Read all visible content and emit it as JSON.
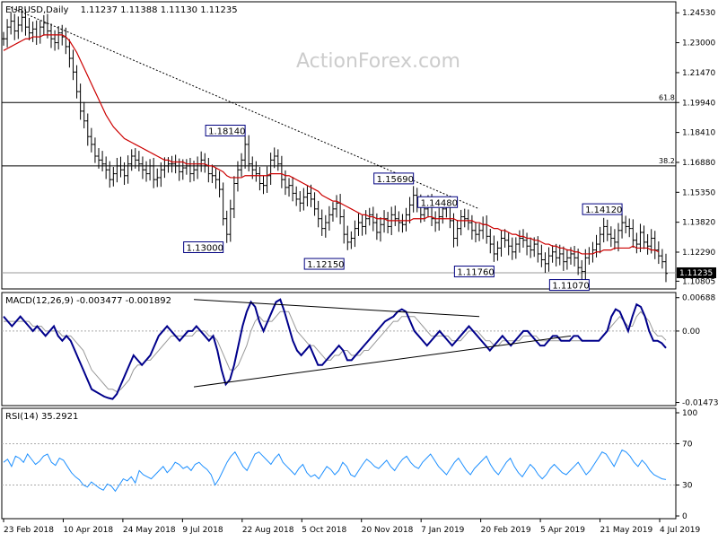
{
  "header": {
    "symbol": "EURUSD,Daily",
    "ohlc": "1.11237 1.11388 1.11130 1.11235",
    "watermark": "ActionForex.com"
  },
  "colors": {
    "background": "#ffffff",
    "price_bars": "#000000",
    "moving_average": "#cc0000",
    "macd_line": "#00008b",
    "signal_line": "#999999",
    "rsi_line": "#1e90ff",
    "grid_dotted": "#aaaaaa",
    "label_border": "#000080",
    "watermark": "#cccccc"
  },
  "chart_data": [
    {
      "type": "line",
      "title": "EURUSD,Daily",
      "ohlc_readout": "1.11237 1.11388 1.11130 1.11235",
      "y_ticks": [
        "1.24530",
        "1.23000",
        "1.21470",
        "1.19940",
        "1.18410",
        "1.16880",
        "1.15350",
        "1.13820",
        "1.12290",
        "1.10805"
      ],
      "last_price_label": "1.11235",
      "ylim": [
        1.105,
        1.25
      ],
      "fib_levels": [
        {
          "label": "61.8",
          "value": 1.1994
        },
        {
          "label": "38.2",
          "value": 1.167
        }
      ],
      "annotations": [
        {
          "text": "1.18140",
          "x_index": 66,
          "value": 1.1814
        },
        {
          "text": "1.13000",
          "x_index": 60,
          "value": 1.13
        },
        {
          "text": "1.12150",
          "x_index": 93,
          "value": 1.1215
        },
        {
          "text": "1.15690",
          "x_index": 112,
          "value": 1.1569
        },
        {
          "text": "1.14480",
          "x_index": 124,
          "value": 1.1448
        },
        {
          "text": "1.11760",
          "x_index": 134,
          "value": 1.1176
        },
        {
          "text": "1.14120",
          "x_index": 169,
          "value": 1.1412
        },
        {
          "text": "1.11070",
          "x_index": 160,
          "value": 1.1107
        }
      ],
      "trendline": {
        "from": {
          "x_index": 2,
          "value": 1.248
        },
        "to": {
          "x_index": 130,
          "value": 1.145
        }
      },
      "series": [
        {
          "values": [
            1.232,
            1.238,
            1.241,
            1.236,
            1.239,
            1.243,
            1.238,
            1.235,
            1.237,
            1.233,
            1.238,
            1.24,
            1.236,
            1.232,
            1.23,
            1.235,
            1.233,
            1.228,
            1.222,
            1.215,
            1.205,
            1.195,
            1.19,
            1.182,
            1.178,
            1.172,
            1.17,
            1.168,
            1.165,
            1.16,
            1.163,
            1.167,
            1.165,
            1.162,
            1.168,
            1.172,
            1.17,
            1.168,
            1.165,
            1.163,
            1.167,
            1.16,
            1.161,
            1.165,
            1.167,
            1.168,
            1.168,
            1.167,
            1.164,
            1.166,
            1.167,
            1.163,
            1.165,
            1.168,
            1.17,
            1.167,
            1.163,
            1.162,
            1.16,
            1.155,
            1.14,
            1.132,
            1.145,
            1.158,
            1.165,
            1.17,
            1.178,
            1.168,
            1.165,
            1.163,
            1.158,
            1.157,
            1.162,
            1.17,
            1.172,
            1.168,
            1.16,
            1.156,
            1.157,
            1.153,
            1.15,
            1.148,
            1.151,
            1.153,
            1.15,
            1.145,
            1.14,
            1.135,
            1.138,
            1.142,
            1.145,
            1.148,
            1.141,
            1.132,
            1.128,
            1.13,
            1.135,
            1.138,
            1.136,
            1.14,
            1.142,
            1.138,
            1.133,
            1.137,
            1.14,
            1.136,
            1.142,
            1.14,
            1.138,
            1.137,
            1.142,
            1.147,
            1.152,
            1.148,
            1.142,
            1.145,
            1.148,
            1.14,
            1.138,
            1.141,
            1.145,
            1.147,
            1.139,
            1.13,
            1.135,
            1.141,
            1.14,
            1.138,
            1.134,
            1.132,
            1.134,
            1.137,
            1.131,
            1.127,
            1.122,
            1.125,
            1.13,
            1.129,
            1.126,
            1.123,
            1.127,
            1.13,
            1.129,
            1.126,
            1.124,
            1.127,
            1.122,
            1.119,
            1.117,
            1.121,
            1.123,
            1.12,
            1.122,
            1.118,
            1.12,
            1.122,
            1.12,
            1.115,
            1.113,
            1.12,
            1.122,
            1.124,
            1.127,
            1.132,
            1.136,
            1.132,
            1.13,
            1.128,
            1.134,
            1.138,
            1.136,
            1.135,
            1.129,
            1.127,
            1.133,
            1.128,
            1.126,
            1.13,
            1.124,
            1.121,
            1.118,
            1.112
          ]
        },
        {
          "name": "MA",
          "values": [
            1.226,
            1.227,
            1.228,
            1.229,
            1.23,
            1.231,
            1.232,
            1.232,
            1.233,
            1.233,
            1.233,
            1.234,
            1.234,
            1.234,
            1.234,
            1.234,
            1.234,
            1.233,
            1.231,
            1.228,
            1.225,
            1.221,
            1.217,
            1.213,
            1.209,
            1.205,
            1.201,
            1.197,
            1.193,
            1.19,
            1.187,
            1.185,
            1.183,
            1.181,
            1.18,
            1.179,
            1.178,
            1.177,
            1.176,
            1.175,
            1.174,
            1.173,
            1.172,
            1.171,
            1.17,
            1.17,
            1.169,
            1.169,
            1.169,
            1.169,
            1.168,
            1.168,
            1.168,
            1.168,
            1.168,
            1.168,
            1.167,
            1.167,
            1.166,
            1.165,
            1.164,
            1.162,
            1.161,
            1.161,
            1.161,
            1.161,
            1.162,
            1.162,
            1.162,
            1.162,
            1.162,
            1.162,
            1.162,
            1.163,
            1.163,
            1.163,
            1.163,
            1.162,
            1.162,
            1.161,
            1.16,
            1.159,
            1.158,
            1.157,
            1.156,
            1.155,
            1.154,
            1.152,
            1.151,
            1.15,
            1.149,
            1.149,
            1.148,
            1.147,
            1.146,
            1.145,
            1.144,
            1.143,
            1.142,
            1.142,
            1.141,
            1.141,
            1.14,
            1.14,
            1.14,
            1.139,
            1.139,
            1.139,
            1.139,
            1.139,
            1.139,
            1.139,
            1.14,
            1.14,
            1.14,
            1.14,
            1.141,
            1.141,
            1.14,
            1.14,
            1.14,
            1.14,
            1.14,
            1.14,
            1.139,
            1.139,
            1.139,
            1.139,
            1.139,
            1.138,
            1.138,
            1.137,
            1.137,
            1.136,
            1.135,
            1.135,
            1.134,
            1.134,
            1.133,
            1.132,
            1.132,
            1.131,
            1.131,
            1.13,
            1.13,
            1.129,
            1.129,
            1.128,
            1.127,
            1.127,
            1.126,
            1.126,
            1.125,
            1.125,
            1.124,
            1.124,
            1.123,
            1.123,
            1.122,
            1.122,
            1.122,
            1.122,
            1.123,
            1.123,
            1.124,
            1.124,
            1.124,
            1.125,
            1.125,
            1.125,
            1.125,
            1.125,
            1.126,
            1.125,
            1.125,
            1.125,
            1.125,
            1.124,
            1.124,
            1.123
          ]
        }
      ]
    },
    {
      "type": "line",
      "title": "MACD(12,26,9) -0.003477 -0.001892",
      "y_ticks": [
        "0.00688",
        "0.00",
        "-0.014731"
      ],
      "ylim": [
        -0.015,
        0.0072
      ],
      "trendlines": [
        {
          "from": {
            "x_index": 52,
            "value": 0.0065
          },
          "to": {
            "x_index": 130,
            "value": 0.003
          }
        },
        {
          "from": {
            "x_index": 52,
            "value": -0.0115
          },
          "to": {
            "x_index": 155,
            "value": -0.001
          }
        }
      ],
      "series": [
        {
          "name": "MACD",
          "values": [
            0.003,
            0.002,
            0.001,
            0.002,
            0.003,
            0.002,
            0.001,
            0.0,
            0.001,
            0.0,
            -0.001,
            0.0,
            0.001,
            -0.001,
            -0.002,
            -0.001,
            -0.002,
            -0.004,
            -0.006,
            -0.008,
            -0.01,
            -0.012,
            -0.0125,
            -0.013,
            -0.0135,
            -0.0138,
            -0.014,
            -0.013,
            -0.011,
            -0.009,
            -0.007,
            -0.005,
            -0.006,
            -0.007,
            -0.006,
            -0.005,
            -0.003,
            -0.001,
            0.0,
            0.001,
            0.0,
            -0.001,
            -0.002,
            -0.001,
            0.0,
            0.0,
            0.001,
            0.0,
            -0.001,
            -0.002,
            -0.001,
            -0.004,
            -0.008,
            -0.011,
            -0.01,
            -0.007,
            -0.003,
            0.001,
            0.004,
            0.006,
            0.005,
            0.002,
            0.0,
            0.002,
            0.004,
            0.006,
            0.0065,
            0.004,
            0.001,
            -0.002,
            -0.004,
            -0.005,
            -0.004,
            -0.003,
            -0.005,
            -0.007,
            -0.007,
            -0.006,
            -0.005,
            -0.004,
            -0.003,
            -0.004,
            -0.006,
            -0.006,
            -0.005,
            -0.004,
            -0.003,
            -0.002,
            -0.001,
            0.0,
            0.001,
            0.002,
            0.0025,
            0.003,
            0.004,
            0.0045,
            0.004,
            0.002,
            0.0,
            -0.001,
            -0.002,
            -0.003,
            -0.002,
            -0.001,
            0.0,
            -0.001,
            -0.002,
            -0.003,
            -0.002,
            -0.001,
            0.0,
            0.001,
            0.0,
            -0.001,
            -0.002,
            -0.003,
            -0.004,
            -0.003,
            -0.002,
            -0.001,
            -0.002,
            -0.003,
            -0.002,
            -0.001,
            0.0,
            0.0,
            -0.001,
            -0.002,
            -0.003,
            -0.003,
            -0.002,
            -0.001,
            -0.001,
            -0.002,
            -0.002,
            -0.002,
            -0.001,
            -0.001,
            -0.002,
            -0.002,
            -0.002,
            -0.002,
            -0.002,
            -0.001,
            0.0,
            0.003,
            0.0045,
            0.004,
            0.002,
            0.0,
            0.003,
            0.0055,
            0.005,
            0.003,
            0.0,
            -0.002,
            -0.002,
            -0.0025,
            -0.0035
          ]
        },
        {
          "name": "Signal",
          "values": [
            0.002,
            0.002,
            0.002,
            0.002,
            0.002,
            0.002,
            0.002,
            0.001,
            0.001,
            0.001,
            0.0,
            0.0,
            0.0,
            0.0,
            -0.001,
            -0.001,
            -0.001,
            -0.002,
            -0.003,
            -0.004,
            -0.006,
            -0.008,
            -0.009,
            -0.01,
            -0.011,
            -0.012,
            -0.012,
            -0.0125,
            -0.012,
            -0.011,
            -0.01,
            -0.008,
            -0.007,
            -0.007,
            -0.006,
            -0.006,
            -0.005,
            -0.004,
            -0.003,
            -0.002,
            -0.001,
            -0.001,
            -0.001,
            -0.001,
            -0.001,
            -0.001,
            0.0,
            0.0,
            0.0,
            -0.001,
            -0.001,
            -0.002,
            -0.004,
            -0.006,
            -0.008,
            -0.008,
            -0.007,
            -0.005,
            -0.003,
            0.0,
            0.002,
            0.003,
            0.002,
            0.002,
            0.002,
            0.003,
            0.004,
            0.004,
            0.004,
            0.002,
            0.0,
            -0.001,
            -0.002,
            -0.003,
            -0.003,
            -0.004,
            -0.005,
            -0.006,
            -0.006,
            -0.005,
            -0.005,
            -0.004,
            -0.004,
            -0.005,
            -0.005,
            -0.005,
            -0.004,
            -0.004,
            -0.003,
            -0.002,
            -0.001,
            0.0,
            0.001,
            0.002,
            0.002,
            0.003,
            0.003,
            0.003,
            0.003,
            0.002,
            0.001,
            0.0,
            -0.001,
            -0.001,
            -0.001,
            -0.001,
            -0.001,
            -0.002,
            -0.002,
            -0.002,
            -0.001,
            0.0,
            0.0,
            0.0,
            -0.001,
            -0.002,
            -0.002,
            -0.003,
            -0.003,
            -0.002,
            -0.002,
            -0.002,
            -0.002,
            -0.002,
            -0.001,
            -0.001,
            -0.001,
            -0.001,
            -0.002,
            -0.002,
            -0.002,
            -0.002,
            -0.002,
            -0.002,
            -0.002,
            -0.002,
            -0.002,
            -0.002,
            -0.002,
            -0.002,
            -0.002,
            -0.002,
            -0.002,
            -0.001,
            0.0,
            0.001,
            0.002,
            0.003,
            0.002,
            0.001,
            0.001,
            0.003,
            0.004,
            0.003,
            0.002,
            0.0,
            -0.001,
            -0.001,
            -0.0019
          ]
        }
      ]
    },
    {
      "type": "line",
      "title": "RSI(14) 35.2921",
      "y_ticks": [
        "100",
        "70",
        "30",
        "0"
      ],
      "ylim": [
        0,
        100
      ],
      "reference_levels": [
        70,
        30
      ],
      "series": [
        {
          "name": "RSI",
          "values": [
            52,
            55,
            48,
            58,
            56,
            52,
            60,
            55,
            50,
            53,
            58,
            60,
            52,
            49,
            56,
            54,
            48,
            42,
            38,
            35,
            30,
            28,
            33,
            30,
            27,
            25,
            31,
            29,
            24,
            30,
            36,
            34,
            38,
            32,
            44,
            40,
            38,
            36,
            40,
            44,
            48,
            42,
            46,
            52,
            50,
            46,
            48,
            44,
            50,
            52,
            48,
            45,
            40,
            30,
            36,
            44,
            52,
            58,
            62,
            55,
            48,
            44,
            52,
            60,
            62,
            58,
            54,
            50,
            56,
            60,
            52,
            48,
            44,
            40,
            46,
            50,
            42,
            38,
            40,
            36,
            42,
            48,
            45,
            40,
            44,
            52,
            48,
            40,
            38,
            44,
            50,
            55,
            52,
            48,
            46,
            50,
            54,
            48,
            44,
            50,
            55,
            58,
            52,
            48,
            46,
            52,
            56,
            60,
            54,
            48,
            44,
            40,
            46,
            52,
            56,
            50,
            44,
            40,
            46,
            50,
            54,
            58,
            50,
            44,
            40,
            46,
            52,
            56,
            48,
            42,
            38,
            44,
            50,
            46,
            40,
            36,
            40,
            46,
            50,
            46,
            42,
            40,
            44,
            48,
            52,
            46,
            40,
            44,
            50,
            56,
            62,
            60,
            54,
            48,
            56,
            64,
            62,
            58,
            52,
            48,
            54,
            50,
            44,
            40,
            38,
            36,
            35.3
          ]
        }
      ]
    },
    {
      "type": "line",
      "x_ticks": [
        "23 Feb 2018",
        "10 Apr 2018",
        "24 May 2018",
        "9 Jul 2018",
        "22 Aug 2018",
        "5 Oct 2018",
        "20 Nov 2018",
        "7 Jan 2019",
        "20 Feb 2019",
        "5 Apr 2019",
        "21 May 2019",
        "4 Jul 2019"
      ]
    }
  ]
}
